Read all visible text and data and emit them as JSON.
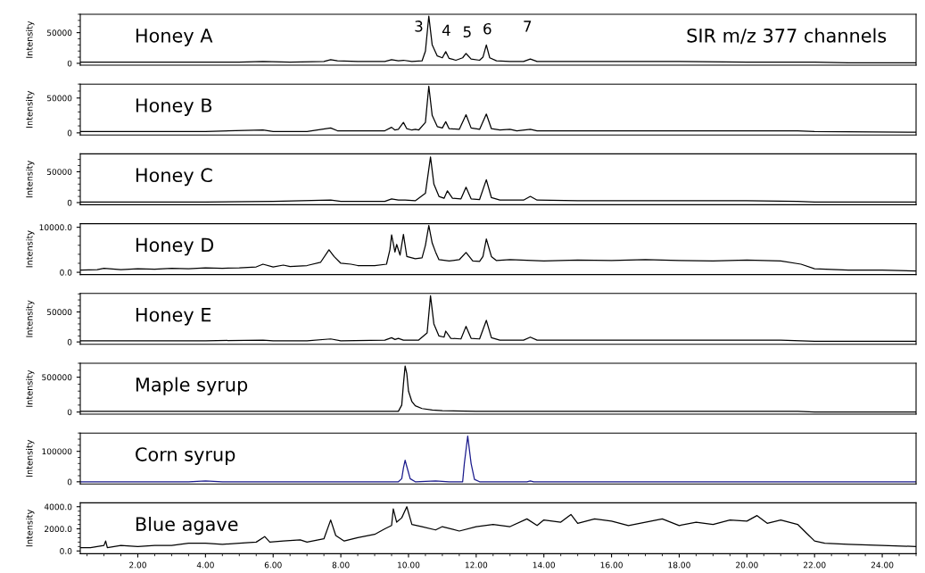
{
  "chart_data": [
    {
      "type": "line",
      "title": "Honey A",
      "ylabel": "Intensity",
      "xlim": [
        0.3,
        25
      ],
      "ylim": [
        -3000,
        80000
      ],
      "yticks": [
        0,
        50000
      ],
      "tick_labels": "y",
      "grid": false,
      "series": [
        {
          "color": "#000000",
          "x": [
            0.3,
            1,
            2,
            3,
            4,
            5,
            5.7,
            6.5,
            7.5,
            7.7,
            7.9,
            8.5,
            9.3,
            9.5,
            9.7,
            9.85,
            10.1,
            10.4,
            10.5,
            10.6,
            10.7,
            10.85,
            11.0,
            11.1,
            11.2,
            11.4,
            11.6,
            11.7,
            11.85,
            12.1,
            12.2,
            12.3,
            12.4,
            12.6,
            13.0,
            13.4,
            13.6,
            13.8,
            14.5,
            16,
            18,
            20,
            21.5,
            22,
            23,
            25
          ],
          "values": [
            2000,
            2000,
            2000,
            2000,
            2000,
            2000,
            3000,
            2000,
            3000,
            6000,
            4000,
            3000,
            3000,
            6000,
            4000,
            5000,
            3000,
            4000,
            20000,
            77000,
            30000,
            12000,
            9000,
            19000,
            8000,
            5000,
            9000,
            16000,
            7000,
            5000,
            10000,
            30000,
            9000,
            4000,
            3000,
            3000,
            7000,
            3000,
            3000,
            3000,
            3000,
            2000,
            2000,
            2000,
            1000,
            1000
          ]
        }
      ],
      "annotations": [
        "3",
        "4",
        "5",
        "6",
        "7",
        "SIR m/z 377 channels"
      ]
    },
    {
      "type": "line",
      "title": "Honey B",
      "ylabel": "Intensity",
      "xlim": [
        0.3,
        25
      ],
      "ylim": [
        -3000,
        70000
      ],
      "yticks": [
        0,
        50000
      ],
      "tick_labels": "y",
      "grid": false,
      "series": [
        {
          "color": "#000000",
          "x": [
            0.3,
            2,
            4,
            5.7,
            6.0,
            6.5,
            7,
            7.7,
            7.9,
            9,
            9.3,
            9.5,
            9.6,
            9.7,
            9.85,
            9.95,
            10.1,
            10.2,
            10.3,
            10.5,
            10.6,
            10.7,
            10.85,
            11,
            11.1,
            11.2,
            11.5,
            11.7,
            11.85,
            12.1,
            12.3,
            12.45,
            12.7,
            13.0,
            13.2,
            13.6,
            13.8,
            15,
            17,
            19,
            20,
            21.5,
            22,
            25
          ],
          "values": [
            2000,
            2000,
            2000,
            4000,
            2000,
            2000,
            2000,
            7000,
            3000,
            3000,
            3000,
            8000,
            4000,
            5000,
            15000,
            6000,
            4000,
            5000,
            4000,
            15000,
            67000,
            25000,
            9000,
            7000,
            16000,
            6000,
            5000,
            26000,
            7000,
            5000,
            27000,
            6000,
            4000,
            5000,
            3000,
            5000,
            3000,
            3000,
            3000,
            3000,
            3000,
            3000,
            2000,
            1000
          ]
        }
      ]
    },
    {
      "type": "line",
      "title": "Honey C",
      "ylabel": "Intensity",
      "xlim": [
        0.3,
        25
      ],
      "ylim": [
        -3500,
        79000
      ],
      "yticks": [
        0,
        50000
      ],
      "tick_labels": "y",
      "grid": false,
      "series": [
        {
          "color": "#000000",
          "x": [
            0.3,
            2,
            4,
            6,
            7.7,
            8,
            9.3,
            9.5,
            9.7,
            9.9,
            10.2,
            10.5,
            10.65,
            10.75,
            10.9,
            11.05,
            11.15,
            11.3,
            11.55,
            11.7,
            11.85,
            12.1,
            12.3,
            12.45,
            12.7,
            13.4,
            13.6,
            13.8,
            15,
            18,
            20,
            21.5,
            22,
            25
          ],
          "values": [
            1000,
            1000,
            1000,
            2000,
            4000,
            2000,
            2000,
            6000,
            4000,
            4000,
            3000,
            15000,
            74000,
            30000,
            10000,
            7000,
            19000,
            7000,
            6000,
            25000,
            6000,
            5000,
            37000,
            8000,
            4000,
            4000,
            10000,
            4000,
            3000,
            3000,
            3000,
            2000,
            1000,
            1000
          ]
        }
      ]
    },
    {
      "type": "line",
      "title": "Honey D",
      "ylabel": "Intensity",
      "xlim": [
        0.3,
        25
      ],
      "ylim": [
        -500,
        10800
      ],
      "yticks": [
        {
          "value": 0,
          "label": "0.0"
        },
        {
          "value": 10000,
          "label": "10000.0"
        }
      ],
      "tick_labels": "y",
      "grid": false,
      "series": [
        {
          "color": "#000000",
          "x": [
            0.3,
            0.8,
            1,
            1.5,
            2,
            2.5,
            3,
            3.5,
            4,
            4.5,
            5,
            5.5,
            5.7,
            6,
            6.3,
            6.5,
            7,
            7.4,
            7.65,
            7.8,
            8,
            8.3,
            8.5,
            9,
            9.35,
            9.45,
            9.5,
            9.6,
            9.65,
            9.75,
            9.85,
            9.95,
            10.2,
            10.4,
            10.5,
            10.6,
            10.7,
            10.8,
            10.9,
            11.2,
            11.5,
            11.7,
            11.9,
            12.1,
            12.2,
            12.3,
            12.45,
            12.6,
            13,
            14,
            15,
            16,
            17,
            18,
            19,
            20,
            21,
            21.6,
            22,
            23,
            24,
            25
          ],
          "values": [
            500,
            600,
            900,
            600,
            800,
            700,
            900,
            800,
            1000,
            900,
            1000,
            1200,
            1800,
            1200,
            1600,
            1300,
            1500,
            2200,
            5000,
            3500,
            2000,
            1800,
            1500,
            1500,
            1800,
            5000,
            8300,
            4500,
            6200,
            3800,
            8400,
            3500,
            3000,
            3200,
            6000,
            10400,
            6500,
            4500,
            2800,
            2500,
            2800,
            4400,
            2500,
            2400,
            3500,
            7400,
            3500,
            2600,
            2800,
            2500,
            2700,
            2600,
            2800,
            2600,
            2500,
            2700,
            2500,
            1800,
            800,
            500,
            500,
            300
          ]
        }
      ]
    },
    {
      "type": "line",
      "title": "Honey E",
      "ylabel": "Intensity",
      "xlim": [
        0.3,
        25
      ],
      "ylim": [
        -4000,
        80800
      ],
      "yticks": [
        0,
        50000
      ],
      "tick_labels": "y",
      "grid": false,
      "series": [
        {
          "color": "#000000",
          "x": [
            0.3,
            2,
            4,
            5.7,
            6,
            7,
            7.7,
            8,
            9.3,
            9.5,
            9.6,
            9.7,
            9.85,
            10.1,
            10.3,
            10.55,
            10.65,
            10.75,
            10.9,
            11.05,
            11.1,
            11.25,
            11.55,
            11.7,
            11.85,
            12.1,
            12.3,
            12.45,
            12.7,
            13.4,
            13.6,
            13.8,
            15,
            17,
            19,
            21,
            21.6,
            22,
            25
          ],
          "values": [
            2000,
            2000,
            2000,
            3000,
            2000,
            2000,
            5000,
            2000,
            3000,
            7000,
            4000,
            6000,
            3000,
            3000,
            3000,
            15000,
            77000,
            30000,
            10000,
            8000,
            18000,
            6000,
            5000,
            26000,
            6000,
            5000,
            36000,
            7000,
            3000,
            3000,
            8000,
            3000,
            3000,
            3000,
            3000,
            3000,
            2000,
            1000,
            1000
          ]
        }
      ]
    },
    {
      "type": "line",
      "title": "Maple syrup",
      "ylabel": "Intensity",
      "xlim": [
        0.3,
        25
      ],
      "ylim": [
        -30000,
        700000
      ],
      "yticks": [
        0,
        500000
      ],
      "tick_labels": "y",
      "grid": false,
      "series": [
        {
          "color": "#000000",
          "x": [
            0.3,
            5,
            9.7,
            9.8,
            9.85,
            9.9,
            9.95,
            10.0,
            10.1,
            10.2,
            10.4,
            10.7,
            11,
            12,
            16,
            21.5,
            22,
            25
          ],
          "values": [
            10000,
            10000,
            10000,
            100000,
            400000,
            660000,
            550000,
            300000,
            150000,
            90000,
            50000,
            30000,
            20000,
            10000,
            10000,
            10000,
            0,
            0
          ]
        }
      ]
    },
    {
      "type": "line",
      "title": "Corn syrup",
      "ylabel": "Intensity",
      "xlim": [
        0.3,
        25
      ],
      "ylim": [
        -7000,
        160000
      ],
      "yticks": [
        0,
        100000
      ],
      "tick_labels": "y",
      "grid": false,
      "series": [
        {
          "color": "#1a1a8c",
          "x": [
            0.3,
            3.5,
            4,
            4.5,
            9.7,
            9.8,
            9.85,
            9.9,
            9.95,
            10.05,
            10.2,
            10.8,
            11.2,
            11.6,
            11.65,
            11.75,
            11.85,
            11.95,
            12.1,
            13.5,
            13.6,
            13.7,
            21,
            25
          ],
          "values": [
            0,
            0,
            3000,
            0,
            0,
            10000,
            45000,
            71000,
            50000,
            10000,
            0,
            3000,
            0,
            0,
            60000,
            150000,
            60000,
            8000,
            0,
            0,
            3000,
            0,
            0,
            0
          ]
        }
      ]
    },
    {
      "type": "line",
      "title": "Blue agave",
      "ylabel": "Intensity",
      "xlim": [
        0.3,
        25
      ],
      "ylim": [
        -250,
        4350
      ],
      "yticks": [
        {
          "value": 0,
          "label": "0.0"
        },
        {
          "value": 2000,
          "label": "2000.0"
        },
        {
          "value": 4000,
          "label": "4000.0"
        }
      ],
      "xticks": [
        {
          "value": 2,
          "label": "2.00"
        },
        {
          "value": 4,
          "label": "4.00"
        },
        {
          "value": 6,
          "label": "6.00"
        },
        {
          "value": 8,
          "label": "8.00"
        },
        {
          "value": 10,
          "label": "10.00"
        },
        {
          "value": 12,
          "label": "12.00"
        },
        {
          "value": 14,
          "label": "14.00"
        },
        {
          "value": 16,
          "label": "16.00"
        },
        {
          "value": 18,
          "label": "18.00"
        },
        {
          "value": 20,
          "label": "20.00"
        },
        {
          "value": 22,
          "label": "22.00"
        },
        {
          "value": 24,
          "label": "24.00"
        }
      ],
      "grid": false,
      "series": [
        {
          "color": "#000000",
          "x": [
            0.3,
            0.6,
            1.0,
            1.05,
            1.1,
            1.5,
            2,
            2.5,
            3,
            3.5,
            4,
            4.5,
            5,
            5.5,
            5.75,
            5.9,
            6.3,
            6.8,
            7,
            7.5,
            7.7,
            7.85,
            8.1,
            8.5,
            9,
            9.3,
            9.5,
            9.55,
            9.65,
            9.8,
            9.95,
            10.1,
            10.4,
            10.8,
            11,
            11.5,
            12,
            12.5,
            13,
            13.5,
            13.8,
            14,
            14.5,
            14.8,
            15,
            15.5,
            16,
            16.5,
            17,
            17.5,
            18,
            18.5,
            19,
            19.5,
            20,
            20.3,
            20.6,
            21,
            21.5,
            21.8,
            22,
            22.3,
            23,
            24,
            25
          ],
          "values": [
            300,
            300,
            500,
            900,
            300,
            500,
            400,
            500,
            500,
            700,
            700,
            600,
            700,
            800,
            1300,
            800,
            900,
            1000,
            800,
            1100,
            2800,
            1400,
            900,
            1200,
            1500,
            2000,
            2300,
            3800,
            2600,
            3000,
            4000,
            2400,
            2200,
            1900,
            2200,
            1800,
            2200,
            2400,
            2200,
            2900,
            2300,
            2800,
            2600,
            3300,
            2500,
            2900,
            2700,
            2300,
            2600,
            2900,
            2300,
            2600,
            2400,
            2800,
            2700,
            3200,
            2500,
            2800,
            2400,
            1500,
            900,
            700,
            600,
            500,
            400
          ]
        }
      ]
    }
  ]
}
